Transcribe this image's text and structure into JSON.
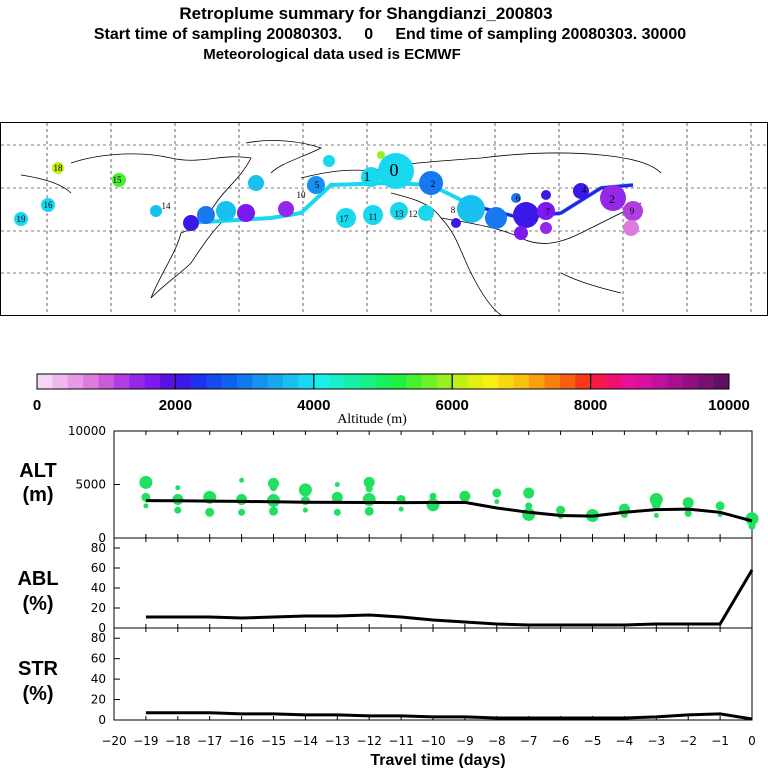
{
  "header": {
    "title": "Retroplume summary for Shangdianzi_200803",
    "sampling": "Start time of sampling 20080303.     0     End time of sampling 20080303. 30000",
    "meteo": "Meteorological data used is ECMWF"
  },
  "colorbar": {
    "label": "Altitude (m)",
    "ticks": [
      "0",
      "2000",
      "4000",
      "6000",
      "8000",
      "10000"
    ],
    "colors": [
      "#f5d6f5",
      "#f0b8f0",
      "#e89ae8",
      "#de7cde",
      "#c95ad8",
      "#b03ee0",
      "#9528e8",
      "#7c18f0",
      "#5a10e0",
      "#3b18e8",
      "#2030f0",
      "#1848f0",
      "#1060f0",
      "#1278f0",
      "#1890f0",
      "#18a8f0",
      "#18c0f0",
      "#18d8f0",
      "#18f0e8",
      "#18f0c8",
      "#18f0a8",
      "#18f088",
      "#18f060",
      "#20f040",
      "#48f030",
      "#70f028",
      "#98f020",
      "#c0f018",
      "#e0f010",
      "#f8f010",
      "#f8d810",
      "#f8c010",
      "#f8a010",
      "#f88010",
      "#f86010",
      "#f83818",
      "#f81848",
      "#f01070",
      "#e81098",
      "#d810a0",
      "#c010a0",
      "#a81090",
      "#901080",
      "#781070",
      "#601060"
    ]
  },
  "map": {
    "description_labels": [
      "0",
      "1",
      "2",
      "3",
      "4",
      "5",
      "6",
      "7",
      "8",
      "9",
      "10",
      "11",
      "12",
      "13",
      "14",
      "15",
      "16",
      "17",
      "18",
      "19"
    ]
  },
  "panels": {
    "alt": {
      "label_top": "ALT",
      "label_bottom": "(m)",
      "yticks": [
        "10000",
        "5000",
        "0"
      ]
    },
    "abl": {
      "label_top": "ABL",
      "label_bottom": "(%)",
      "yticks": [
        "80",
        "60",
        "40",
        "20",
        "0"
      ]
    },
    "str": {
      "label_top": "STR",
      "label_bottom": "(%)",
      "yticks": [
        "80",
        "60",
        "40",
        "20",
        "0"
      ]
    },
    "xticks": [
      "−20",
      "−19",
      "−18",
      "−17",
      "−16",
      "−15",
      "−14",
      "−13",
      "−12",
      "−11",
      "−10",
      "−9",
      "−8",
      "−7",
      "−6",
      "−5",
      "−4",
      "−3",
      "−2",
      "−1",
      "0"
    ],
    "xlabel": "Travel time (days)"
  },
  "chart_data": [
    {
      "type": "line",
      "title": "ALT (m)",
      "x": [
        -19,
        -18,
        -17,
        -16,
        -15,
        -14,
        -13,
        -12,
        -11,
        -10,
        -9,
        -8,
        -7,
        -6,
        -5,
        -4,
        -3,
        -2,
        -1,
        0
      ],
      "series": [
        {
          "name": "mean altitude",
          "values": [
            3500,
            3480,
            3450,
            3420,
            3380,
            3350,
            3330,
            3320,
            3310,
            3320,
            3330,
            2800,
            2400,
            2100,
            2050,
            2400,
            2650,
            2700,
            2400,
            1600
          ]
        }
      ],
      "scatter": {
        "name": "plume clusters",
        "points": [
          [
            -19,
            3000
          ],
          [
            -19,
            3800
          ],
          [
            -19,
            5200
          ],
          [
            -18,
            2600
          ],
          [
            -18,
            3600
          ],
          [
            -18,
            4700
          ],
          [
            -17,
            2400
          ],
          [
            -17,
            3800
          ],
          [
            -16,
            2400
          ],
          [
            -16,
            3600
          ],
          [
            -16,
            5400
          ],
          [
            -15,
            2500
          ],
          [
            -15,
            3500
          ],
          [
            -15,
            4700
          ],
          [
            -15,
            5100
          ],
          [
            -14,
            2600
          ],
          [
            -14,
            3500
          ],
          [
            -14,
            4500
          ],
          [
            -13,
            2400
          ],
          [
            -13,
            3800
          ],
          [
            -13,
            5000
          ],
          [
            -12,
            2500
          ],
          [
            -12,
            3600
          ],
          [
            -12,
            4600
          ],
          [
            -12,
            5200
          ],
          [
            -11,
            2700
          ],
          [
            -11,
            3600
          ],
          [
            -10,
            3100
          ],
          [
            -10,
            3900
          ],
          [
            -9,
            3900
          ],
          [
            -8,
            3400
          ],
          [
            -8,
            4200
          ],
          [
            -7,
            2200
          ],
          [
            -7,
            3000
          ],
          [
            -7,
            4200
          ],
          [
            -6,
            2000
          ],
          [
            -6,
            2600
          ],
          [
            -5,
            2100
          ],
          [
            -4,
            2200
          ],
          [
            -4,
            2700
          ],
          [
            -3,
            2100
          ],
          [
            -3,
            3100
          ],
          [
            -3,
            3600
          ],
          [
            -2,
            2300
          ],
          [
            -2,
            3300
          ],
          [
            -1,
            2200
          ],
          [
            -1,
            3000
          ],
          [
            0,
            1800
          ],
          [
            0,
            1100
          ]
        ]
      },
      "xlim": [
        -20,
        0
      ],
      "ylim": [
        0,
        10000
      ]
    },
    {
      "type": "line",
      "title": "ABL (%)",
      "x": [
        -19,
        -18,
        -17,
        -16,
        -15,
        -14,
        -13,
        -12,
        -11,
        -10,
        -9,
        -8,
        -7,
        -6,
        -5,
        -4,
        -3,
        -2,
        -1,
        0
      ],
      "series": [
        {
          "name": "ABL",
          "values": [
            11,
            11,
            11,
            10,
            11,
            12,
            12,
            13,
            11,
            8,
            6,
            4,
            3,
            3,
            3,
            3,
            4,
            4,
            4,
            58
          ]
        }
      ],
      "xlim": [
        -20,
        0
      ],
      "ylim": [
        0,
        90
      ]
    },
    {
      "type": "line",
      "title": "STR (%)",
      "x": [
        -19,
        -18,
        -17,
        -16,
        -15,
        -14,
        -13,
        -12,
        -11,
        -10,
        -9,
        -8,
        -7,
        -6,
        -5,
        -4,
        -3,
        -2,
        -1,
        0
      ],
      "series": [
        {
          "name": "STR",
          "values": [
            7,
            7,
            7,
            6,
            6,
            5,
            5,
            4,
            4,
            3,
            3,
            2,
            2,
            2,
            2,
            2,
            3,
            5,
            6,
            1
          ]
        }
      ],
      "xlim": [
        -20,
        0
      ],
      "ylim": [
        0,
        90
      ]
    }
  ]
}
